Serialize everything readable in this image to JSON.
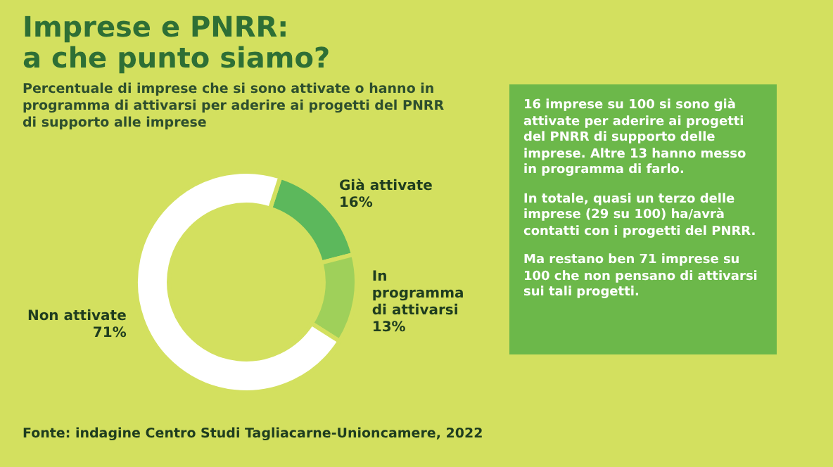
{
  "chart_data": {
    "type": "donut",
    "title": "Imprese e PNRR:\na che punto siamo?",
    "subtitle": "Percentuale di imprese che si sono attivate o hanno in programma di attivarsi per aderire ai progetti del PNRR di supporto alle imprese",
    "categories": [
      "Già attivate",
      "In programma di attivarsi",
      "Non attivate"
    ],
    "values": [
      16,
      13,
      71
    ],
    "colors": [
      "#5cb85c",
      "#9fd05a",
      "#ffffff"
    ],
    "value_labels": [
      "16%",
      "13%",
      "71%"
    ],
    "legend": false,
    "annotations": [
      "16 imprese su 100 si sono già attivate per aderire ai progetti del PNRR di supporto delle imprese. Altre 13 hanno messo in programma di farlo.",
      "In totale, quasi un terzo delle imprese (29 su 100) ha/avrà contatti con i progetti del PNRR.",
      "Ma restano ben 71 imprese su 100 che non pensano di attivarsi sui tali progetti.",
      "Fonte: indagine Centro Studi Tagliacarne-Unioncamere, 2022"
    ]
  }
}
